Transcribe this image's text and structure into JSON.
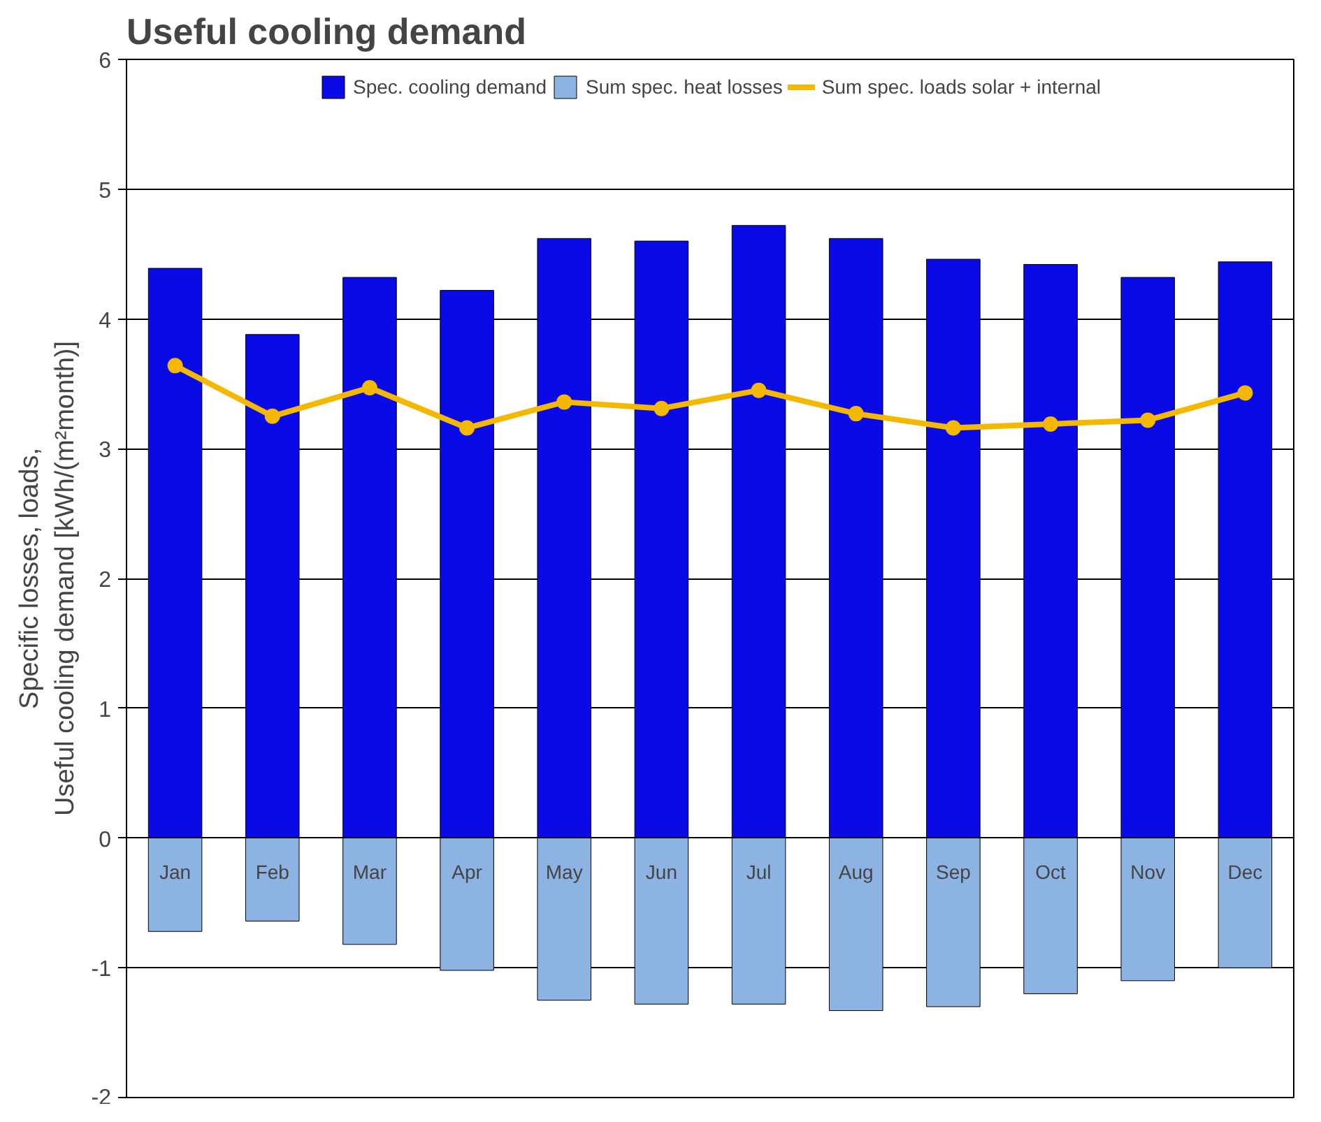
{
  "chart_data": {
    "type": "bar",
    "title": "Useful cooling demand",
    "ylabel": "Specific losses, loads,\nUseful cooling demand [kWh/(m²month)]",
    "categories": [
      "Jan",
      "Feb",
      "Mar",
      "Apr",
      "May",
      "Jun",
      "Jul",
      "Aug",
      "Sep",
      "Oct",
      "Nov",
      "Dec"
    ],
    "series": [
      {
        "name": "Spec. cooling demand",
        "color": "#0a0ae6",
        "values": [
          4.39,
          3.88,
          4.32,
          4.22,
          4.62,
          4.6,
          4.72,
          4.62,
          4.46,
          4.42,
          4.32,
          4.44
        ]
      },
      {
        "name": "Sum spec. heat losses",
        "color": "#8db3e2",
        "values": [
          -0.72,
          -0.64,
          -0.82,
          -1.02,
          -1.25,
          -1.28,
          -1.28,
          -1.33,
          -1.3,
          -1.2,
          -1.1,
          -1.0
        ]
      },
      {
        "name": "Sum spec. loads solar + internal",
        "color": "#f5b800",
        "type": "line",
        "marker": "circle",
        "values": [
          3.64,
          3.25,
          3.47,
          3.16,
          3.36,
          3.31,
          3.45,
          3.27,
          3.16,
          3.19,
          3.22,
          3.43
        ]
      }
    ],
    "ylim": [
      -2,
      6
    ],
    "yticks": [
      -2,
      -1,
      0,
      1,
      2,
      3,
      4,
      5,
      6
    ],
    "grid": "y",
    "stacked": true,
    "legend": "top"
  }
}
